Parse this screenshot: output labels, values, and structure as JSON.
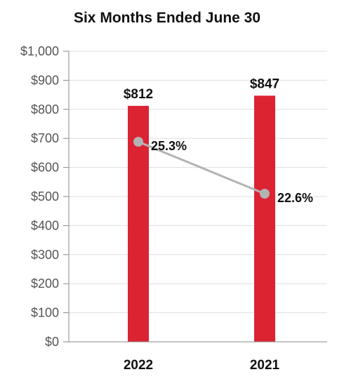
{
  "chart_data": {
    "type": "bar",
    "title": "Six Months Ended June 30",
    "categories": [
      "2022",
      "2021"
    ],
    "series": [
      {
        "type": "bar",
        "values": [
          812,
          847
        ],
        "labels": [
          "$812",
          "$847"
        ],
        "color": "#dc2332"
      },
      {
        "type": "line",
        "values": [
          25.3,
          22.6
        ],
        "labels": [
          "25.3%",
          "22.6%"
        ],
        "color": "#b3b3b3"
      }
    ],
    "ylim": [
      0,
      1000
    ],
    "yticks": [
      "$0",
      "$100",
      "$200",
      "$300",
      "$400",
      "$500",
      "$600",
      "$700",
      "$800",
      "$900",
      "$1,000"
    ],
    "grid": true
  }
}
